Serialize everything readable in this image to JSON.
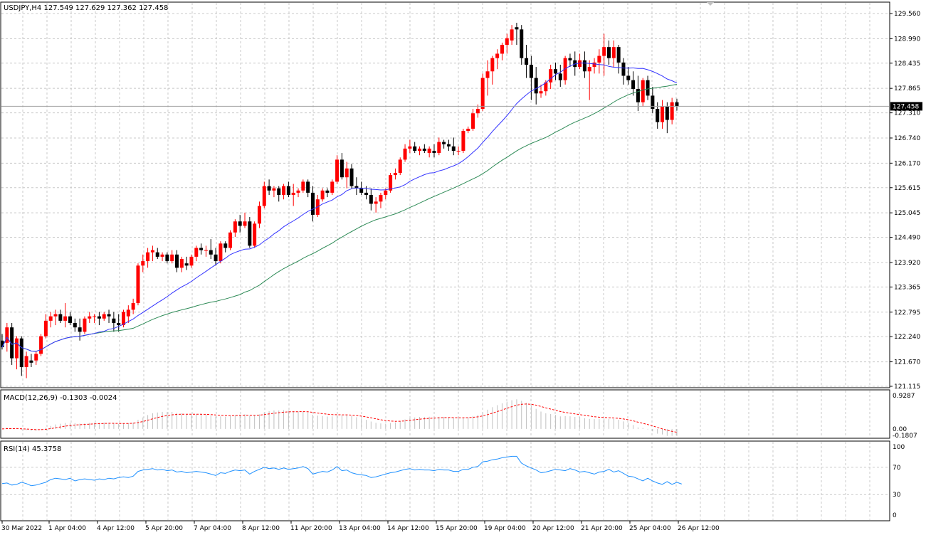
{
  "chart_data": [
    {
      "type": "candlestick",
      "pane": "main",
      "header": "USDJPY,H4  127.549 127.629 127.362 127.458",
      "symbol": "USDJPY",
      "timeframe": "H4",
      "last_price_label": "127.458",
      "last_price": 127.458,
      "ylim": [
        121.115,
        129.56
      ],
      "y_ticks": [
        "129.560",
        "128.990",
        "128.435",
        "127.865",
        "127.310",
        "126.740",
        "126.170",
        "125.615",
        "125.045",
        "124.490",
        "123.920",
        "123.365",
        "122.795",
        "122.240",
        "121.670",
        "121.115"
      ],
      "x_ticks": [
        "30 Mar 2022",
        "1 Apr 04:00",
        "4 Apr 12:00",
        "5 Apr 20:00",
        "7 Apr 04:00",
        "8 Apr 12:00",
        "11 Apr 20:00",
        "13 Apr 04:00",
        "14 Apr 12:00",
        "15 Apr 20:00",
        "19 Apr 04:00",
        "20 Apr 12:00",
        "21 Apr 20:00",
        "25 Apr 04:00",
        "26 Apr 12:00"
      ],
      "grid": true,
      "colors": {
        "bull": "#ff0000",
        "bear": "#000000",
        "ma_fast": "#3333ff",
        "ma_slow": "#2e8b57",
        "grid": "#c8c8c8",
        "price_line": "#a0a0a0"
      },
      "ohlc": [
        [
          122.15,
          122.3,
          121.95,
          122.0
        ],
        [
          122.1,
          122.55,
          121.9,
          122.45
        ],
        [
          122.45,
          122.55,
          121.6,
          121.75
        ],
        [
          121.75,
          122.25,
          121.5,
          122.2
        ],
        [
          122.2,
          122.25,
          121.35,
          121.55
        ],
        [
          121.55,
          121.9,
          121.3,
          121.8
        ],
        [
          121.7,
          121.85,
          121.55,
          121.65
        ],
        [
          121.7,
          121.9,
          121.6,
          121.85
        ],
        [
          121.85,
          122.3,
          121.8,
          122.25
        ],
        [
          122.25,
          122.75,
          122.2,
          122.6
        ],
        [
          122.6,
          122.8,
          122.45,
          122.7
        ],
        [
          122.7,
          122.85,
          122.5,
          122.75
        ],
        [
          122.75,
          122.85,
          122.55,
          122.6
        ],
        [
          122.6,
          123.0,
          122.45,
          122.7
        ],
        [
          122.7,
          122.8,
          122.5,
          122.55
        ],
        [
          122.55,
          122.65,
          122.35,
          122.45
        ],
        [
          122.45,
          122.65,
          122.15,
          122.35
        ],
        [
          122.35,
          122.7,
          122.3,
          122.65
        ],
        [
          122.65,
          122.8,
          122.55,
          122.7
        ],
        [
          122.7,
          122.75,
          122.55,
          122.7
        ],
        [
          122.7,
          122.8,
          122.5,
          122.65
        ],
        [
          122.65,
          122.8,
          122.6,
          122.75
        ],
        [
          122.75,
          122.85,
          122.55,
          122.7
        ],
        [
          122.65,
          122.8,
          122.35,
          122.55
        ],
        [
          122.55,
          122.75,
          122.35,
          122.5
        ],
        [
          122.5,
          122.85,
          122.45,
          122.8
        ],
        [
          122.7,
          122.95,
          122.55,
          122.85
        ],
        [
          122.85,
          123.1,
          122.75,
          123.0
        ],
        [
          123.0,
          123.9,
          122.95,
          123.85
        ],
        [
          123.85,
          124.1,
          123.7,
          123.95
        ],
        [
          123.95,
          124.25,
          123.8,
          124.15
        ],
        [
          124.15,
          124.3,
          123.95,
          124.2
        ],
        [
          124.15,
          124.25,
          124.0,
          124.05
        ],
        [
          124.05,
          124.15,
          123.95,
          124.1
        ],
        [
          124.1,
          124.15,
          123.9,
          123.95
        ],
        [
          123.95,
          124.2,
          123.9,
          124.1
        ],
        [
          124.1,
          124.2,
          123.7,
          123.8
        ],
        [
          123.8,
          124.05,
          123.7,
          124.0
        ],
        [
          123.9,
          124.05,
          123.75,
          123.85
        ],
        [
          123.85,
          124.1,
          123.8,
          124.05
        ],
        [
          124.05,
          124.3,
          123.95,
          124.25
        ],
        [
          124.25,
          124.35,
          124.1,
          124.2
        ],
        [
          124.2,
          124.3,
          124.05,
          124.2
        ],
        [
          124.2,
          124.45,
          124.0,
          124.1
        ],
        [
          124.1,
          124.25,
          123.85,
          123.95
        ],
        [
          123.95,
          124.4,
          123.9,
          124.35
        ],
        [
          124.35,
          124.4,
          124.15,
          124.25
        ],
        [
          124.25,
          124.65,
          124.2,
          124.6
        ],
        [
          124.6,
          124.9,
          124.5,
          124.85
        ],
        [
          124.85,
          125.0,
          124.6,
          124.75
        ],
        [
          124.75,
          125.05,
          124.7,
          124.85
        ],
        [
          124.85,
          124.95,
          124.25,
          124.3
        ],
        [
          124.3,
          124.85,
          124.25,
          124.8
        ],
        [
          124.8,
          125.3,
          124.7,
          125.2
        ],
        [
          125.2,
          125.75,
          125.15,
          125.65
        ],
        [
          125.65,
          125.8,
          125.45,
          125.55
        ],
        [
          125.55,
          125.65,
          125.4,
          125.6
        ],
        [
          125.6,
          125.65,
          125.3,
          125.45
        ],
        [
          125.45,
          125.7,
          125.35,
          125.65
        ],
        [
          125.65,
          125.75,
          125.4,
          125.45
        ],
        [
          125.45,
          125.7,
          125.2,
          125.5
        ],
        [
          125.5,
          125.6,
          125.4,
          125.55
        ],
        [
          125.55,
          125.8,
          125.5,
          125.75
        ],
        [
          125.75,
          125.8,
          125.4,
          125.5
        ],
        [
          125.5,
          125.65,
          124.85,
          125.0
        ],
        [
          125.0,
          125.45,
          124.95,
          125.35
        ],
        [
          125.35,
          125.6,
          125.3,
          125.55
        ],
        [
          125.55,
          125.6,
          125.4,
          125.5
        ],
        [
          125.5,
          125.8,
          125.45,
          125.75
        ],
        [
          125.75,
          126.35,
          125.7,
          126.25
        ],
        [
          126.25,
          126.4,
          125.8,
          125.85
        ],
        [
          125.85,
          126.2,
          125.6,
          126.05
        ],
        [
          126.05,
          126.15,
          125.6,
          125.65
        ],
        [
          125.65,
          125.85,
          125.45,
          125.6
        ],
        [
          125.6,
          125.75,
          125.45,
          125.5
        ],
        [
          125.5,
          125.65,
          125.35,
          125.45
        ],
        [
          125.45,
          125.6,
          125.1,
          125.25
        ],
        [
          125.25,
          125.4,
          125.05,
          125.3
        ],
        [
          125.3,
          125.5,
          125.15,
          125.45
        ],
        [
          125.45,
          125.6,
          125.35,
          125.55
        ],
        [
          125.55,
          125.95,
          125.5,
          125.9
        ],
        [
          125.9,
          126.05,
          125.8,
          125.95
        ],
        [
          125.95,
          126.3,
          125.9,
          126.25
        ],
        [
          126.25,
          126.6,
          126.2,
          126.5
        ],
        [
          126.5,
          126.7,
          126.4,
          126.55
        ],
        [
          126.55,
          126.65,
          126.4,
          126.45
        ],
        [
          126.45,
          126.55,
          126.35,
          126.5
        ],
        [
          126.5,
          126.6,
          126.4,
          126.45
        ],
        [
          126.4,
          126.55,
          126.3,
          126.5
        ],
        [
          126.45,
          126.6,
          126.3,
          126.4
        ],
        [
          126.4,
          126.75,
          126.35,
          126.65
        ],
        [
          126.65,
          126.7,
          126.5,
          126.6
        ],
        [
          126.6,
          126.7,
          126.45,
          126.55
        ],
        [
          126.55,
          126.75,
          126.35,
          126.45
        ],
        [
          126.45,
          126.55,
          126.35,
          126.45
        ],
        [
          126.45,
          126.95,
          126.4,
          126.9
        ],
        [
          126.9,
          127.0,
          126.85,
          126.95
        ],
        [
          126.95,
          127.4,
          126.9,
          127.3
        ],
        [
          127.3,
          127.5,
          127.2,
          127.4
        ],
        [
          127.4,
          128.2,
          127.35,
          128.1
        ],
        [
          128.1,
          128.5,
          127.7,
          128.25
        ],
        [
          128.25,
          128.6,
          127.95,
          128.55
        ],
        [
          128.55,
          128.75,
          128.3,
          128.65
        ],
        [
          128.65,
          128.9,
          128.5,
          128.85
        ],
        [
          128.85,
          129.1,
          128.65,
          129.0
        ],
        [
          128.95,
          129.3,
          128.85,
          129.2
        ],
        [
          129.25,
          129.35,
          128.85,
          129.2
        ],
        [
          129.2,
          129.3,
          128.4,
          128.55
        ],
        [
          128.55,
          128.85,
          128.1,
          128.4
        ],
        [
          128.4,
          128.6,
          127.6,
          128.1
        ],
        [
          128.1,
          128.35,
          127.5,
          127.75
        ],
        [
          127.75,
          127.95,
          127.65,
          127.8
        ],
        [
          127.8,
          128.05,
          127.7,
          128.0
        ],
        [
          128.0,
          128.4,
          127.85,
          128.3
        ],
        [
          128.3,
          128.45,
          128.05,
          128.2
        ],
        [
          128.2,
          128.4,
          127.9,
          128.05
        ],
        [
          128.05,
          128.6,
          127.95,
          128.55
        ],
        [
          128.55,
          128.65,
          128.35,
          128.5
        ],
        [
          128.5,
          128.7,
          128.15,
          128.35
        ],
        [
          128.35,
          128.65,
          128.3,
          128.5
        ],
        [
          128.5,
          128.7,
          128.1,
          128.25
        ],
        [
          128.25,
          128.5,
          127.6,
          128.35
        ],
        [
          128.35,
          128.55,
          128.2,
          128.45
        ],
        [
          128.45,
          128.75,
          128.2,
          128.6
        ],
        [
          128.6,
          129.1,
          128.15,
          128.8
        ],
        [
          128.8,
          128.95,
          128.4,
          128.55
        ],
        [
          128.55,
          128.95,
          128.35,
          128.8
        ],
        [
          128.8,
          128.85,
          128.2,
          128.45
        ],
        [
          128.45,
          128.55,
          127.95,
          128.15
        ],
        [
          128.15,
          128.35,
          127.95,
          128.05
        ],
        [
          128.05,
          128.25,
          127.7,
          127.85
        ],
        [
          127.85,
          128.15,
          127.35,
          127.55
        ],
        [
          127.55,
          128.1,
          127.45,
          128.05
        ],
        [
          128.05,
          128.15,
          127.6,
          127.7
        ],
        [
          127.7,
          127.9,
          127.3,
          127.4
        ],
        [
          127.4,
          127.55,
          126.95,
          127.1
        ],
        [
          127.1,
          127.6,
          126.95,
          127.45
        ],
        [
          127.45,
          127.55,
          126.85,
          127.15
        ],
        [
          127.15,
          127.65,
          127.05,
          127.55
        ],
        [
          127.55,
          127.63,
          127.36,
          127.46
        ]
      ]
    },
    {
      "type": "histogram+line",
      "pane": "macd",
      "label": "MACD(12,26,9) -0.1303 -0.0024",
      "params": "12,26,9",
      "macd": -0.1303,
      "signal": -0.0024,
      "ylim": [
        -0.1807,
        0.9287
      ],
      "y_ticks": [
        "0.9287",
        "0.00",
        "-0.1807"
      ]
    },
    {
      "type": "line",
      "pane": "rsi",
      "label": "RSI(14) 45.3758",
      "value": 45.3758,
      "ylim": [
        0,
        100
      ],
      "y_ticks": [
        "100",
        "70",
        "30",
        "0"
      ],
      "values": [
        46,
        47,
        44,
        45,
        48,
        46,
        43,
        44,
        46,
        48,
        52,
        54,
        53,
        52,
        54,
        50,
        52,
        53,
        52,
        51,
        53,
        52,
        54,
        53,
        55,
        56,
        55,
        57,
        64,
        66,
        67,
        68,
        66,
        67,
        65,
        66,
        63,
        64,
        62,
        63,
        64,
        63,
        62,
        60,
        58,
        62,
        61,
        64,
        66,
        65,
        66,
        60,
        64,
        67,
        70,
        68,
        69,
        67,
        69,
        67,
        68,
        69,
        71,
        68,
        60,
        62,
        64,
        63,
        66,
        71,
        65,
        66,
        62,
        60,
        59,
        58,
        55,
        56,
        58,
        60,
        62,
        63,
        65,
        67,
        68,
        66,
        67,
        66,
        66,
        65,
        67,
        66,
        66,
        64,
        64,
        67,
        67,
        70,
        71,
        78,
        79,
        81,
        82,
        84,
        85,
        86,
        86,
        76,
        72,
        69,
        66,
        62,
        63,
        65,
        67,
        66,
        65,
        68,
        66,
        63,
        64,
        62,
        60,
        63,
        64,
        67,
        63,
        65,
        61,
        57,
        56,
        53,
        50,
        54,
        50,
        47,
        45,
        49,
        45,
        48,
        45.3758
      ]
    }
  ]
}
